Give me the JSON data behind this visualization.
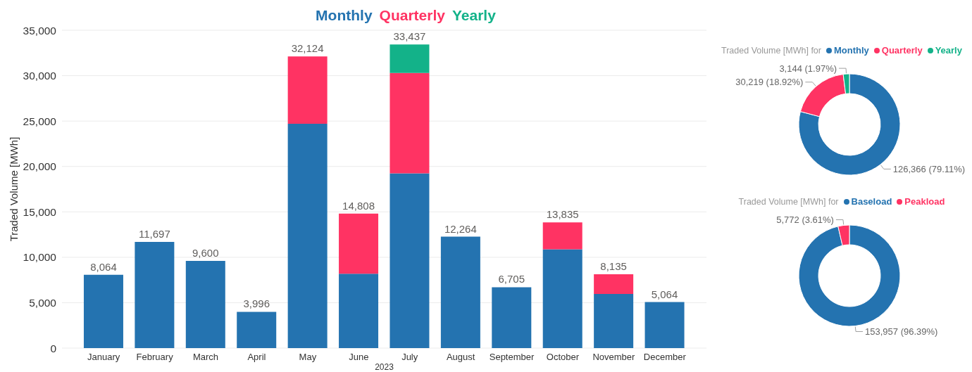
{
  "chart_data": [
    {
      "type": "bar",
      "stacked": true,
      "legend": "top",
      "grid": "y",
      "ylabel": "Traded Volume [MWh]",
      "xlabel": "2023",
      "categories": [
        "January",
        "February",
        "March",
        "April",
        "May",
        "June",
        "July",
        "August",
        "September",
        "October",
        "November",
        "December"
      ],
      "series": [
        {
          "name": "Monthly",
          "color": "#2473b0",
          "values": [
            8064,
            11697,
            9600,
            3996,
            24700,
            8180,
            19250,
            12264,
            6705,
            10880,
            5960,
            5064
          ]
        },
        {
          "name": "Quarterly",
          "color": "#ff3363",
          "values": [
            null,
            null,
            null,
            null,
            7424,
            6628,
            11043,
            null,
            null,
            2955,
            2175,
            null
          ]
        },
        {
          "name": "Yearly",
          "color": "#13b289",
          "values": [
            null,
            null,
            null,
            null,
            null,
            null,
            3144,
            null,
            null,
            null,
            null,
            null
          ]
        }
      ],
      "totals": [
        "8,064",
        "11,697",
        "9,600",
        "3,996",
        "32,124",
        "14,808",
        "33,437",
        "12,264",
        "6,705",
        "13,835",
        "8,135",
        "5,064"
      ],
      "ylim": [
        0,
        35000
      ],
      "yticks": [
        0,
        {
          "value": 5000,
          "label": "5,000"
        },
        {
          "value": 10000,
          "label": "10,000"
        },
        {
          "value": 15000,
          "label": "15,000"
        },
        {
          "value": 20000,
          "label": "20,000"
        },
        {
          "value": 25000,
          "label": "25,000"
        },
        {
          "value": 30000,
          "label": "30,000"
        },
        {
          "value": 35000,
          "label": "35,000"
        }
      ]
    },
    {
      "type": "donut",
      "title": "Traded Volume [MWh] for",
      "legend": "top",
      "categories": [
        "Monthly",
        "Quarterly",
        "Yearly"
      ],
      "values": [
        126366,
        30219,
        3144
      ],
      "colors": [
        "#2473b0",
        "#ff3363",
        "#13b289"
      ],
      "value_labels": [
        "126,366 (79.11%)",
        "30,219 (18.92%)",
        "3,144 (1.97%)"
      ]
    },
    {
      "type": "donut",
      "title": "Traded Volume [MWh] for",
      "legend": "top",
      "categories": [
        "Baseload",
        "Peakload"
      ],
      "values": [
        153957,
        5772
      ],
      "colors": [
        "#2473b0",
        "#ff3363"
      ],
      "value_labels": [
        "153,957 (96.39%)",
        "5,772 (3.61%)"
      ]
    }
  ]
}
